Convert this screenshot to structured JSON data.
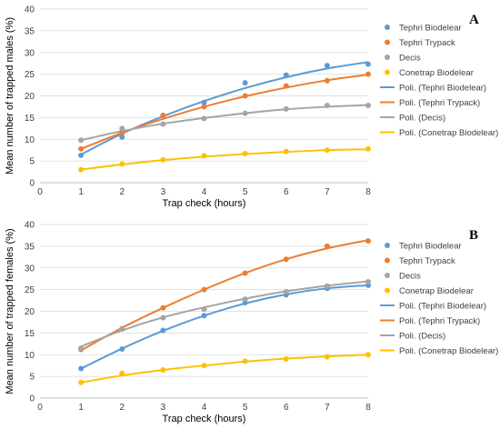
{
  "colors": {
    "tephri_biodelear": "#5B9BD5",
    "tephri_trypack": "#ED7D31",
    "decis": "#A5A5A5",
    "conetrap_biodelear": "#FFC000",
    "grid": "#D9D9D9",
    "axis": "#BFBFBF"
  },
  "chart_data": [
    {
      "type": "scatter",
      "panel_label": "A",
      "xlabel": "Trap check (hours)",
      "ylabel": "Mean number of trapped males (%)",
      "xlim": [
        0,
        8
      ],
      "ylim": [
        0,
        40
      ],
      "xticks": [
        "0",
        "1",
        "2",
        "3",
        "4",
        "5",
        "6",
        "7",
        "8"
      ],
      "yticks": [
        "0",
        "5",
        "10",
        "15",
        "20",
        "25",
        "30",
        "35",
        "40"
      ],
      "grid": "horizontal",
      "legend_position": "right",
      "x": [
        1,
        2,
        3,
        4,
        5,
        6,
        7,
        8
      ],
      "series": [
        {
          "name": "Tephri Biodelear",
          "color_key": "tephri_biodelear",
          "values": [
            6.3,
            10.5,
            15.5,
            18.5,
            23,
            24.8,
            27,
            27.3
          ],
          "trend": [
            6.5,
            11.3,
            15.3,
            18.8,
            21.8,
            24.3,
            26.3,
            27.8
          ]
        },
        {
          "name": "Tephri Trypack",
          "color_key": "tephri_trypack",
          "values": [
            7.8,
            11.5,
            15.5,
            17.5,
            20,
            22.3,
            23.5,
            25
          ],
          "trend": [
            7.8,
            11.5,
            14.7,
            17.5,
            19.9,
            21.9,
            23.6,
            24.9
          ]
        },
        {
          "name": "Decis",
          "color_key": "decis",
          "values": [
            9.8,
            12.5,
            13.5,
            14.8,
            16,
            17,
            17.8,
            17.8
          ],
          "trend": [
            9.8,
            11.9,
            13.6,
            14.9,
            16,
            16.9,
            17.5,
            17.9
          ]
        },
        {
          "name": "Conetrap Biodelear",
          "color_key": "conetrap_biodelear",
          "values": [
            3,
            4.3,
            5.3,
            6.2,
            6.7,
            7.2,
            7.5,
            7.8
          ],
          "trend": [
            3,
            4.2,
            5.2,
            6,
            6.6,
            7.1,
            7.5,
            7.7
          ]
        }
      ],
      "legend": [
        "Tephri Biodelear",
        "Tephri Trypack",
        "Decis",
        "Conetrap Biodelear",
        "Poli. (Tephri Biodelear)",
        "Poli. (Tephri Trypack)",
        "Poli. (Decis)",
        "Poli. (Conetrap Biodelear)"
      ]
    },
    {
      "type": "scatter",
      "panel_label": "B",
      "xlabel": "Trap check (hours)",
      "ylabel": "Mean number of trapped females (%)",
      "xlim": [
        0,
        8
      ],
      "ylim": [
        0,
        40
      ],
      "xticks": [
        "0",
        "1",
        "2",
        "3",
        "4",
        "5",
        "6",
        "7",
        "8"
      ],
      "yticks": [
        "0",
        "5",
        "10",
        "15",
        "20",
        "25",
        "30",
        "35",
        "40"
      ],
      "grid": "horizontal",
      "legend_position": "right",
      "x": [
        1,
        2,
        3,
        4,
        5,
        6,
        7,
        8
      ],
      "series": [
        {
          "name": "Tephri Biodelear",
          "color_key": "tephri_biodelear",
          "values": [
            6.8,
            11.3,
            15.6,
            19,
            22,
            23.8,
            25.3,
            26
          ],
          "trend": [
            6.8,
            11.4,
            15.5,
            19,
            21.8,
            23.9,
            25.3,
            26
          ]
        },
        {
          "name": "Tephri Trypack",
          "color_key": "tephri_trypack",
          "values": [
            11.2,
            16,
            20.8,
            25,
            28.8,
            32,
            35,
            36.2
          ],
          "trend": [
            11,
            16.2,
            20.8,
            25,
            28.8,
            32,
            34.5,
            36.4
          ]
        },
        {
          "name": "Decis",
          "color_key": "decis",
          "values": [
            11.5,
            15.9,
            18.5,
            20.5,
            22.8,
            24.5,
            25.8,
            26.8
          ],
          "trend": [
            11.9,
            15.6,
            18.6,
            20.9,
            22.9,
            24.6,
            25.9,
            26.9
          ]
        },
        {
          "name": "Conetrap Biodelear",
          "color_key": "conetrap_biodelear",
          "values": [
            3.6,
            5.7,
            6.5,
            7.5,
            8.5,
            9,
            9.5,
            10
          ],
          "trend": [
            3.6,
            5.2,
            6.5,
            7.5,
            8.4,
            9.1,
            9.6,
            10
          ]
        }
      ],
      "legend": [
        "Tephri Biodelear",
        "Tephri Trypack",
        "Decis",
        "Conetrap Biodelear",
        "Poli. (Tephri Biodelear)",
        "Poli. (Tephri Trypack)",
        "Poli. (Decis)",
        "Poli. (Conetrap Biodelear)"
      ]
    }
  ]
}
